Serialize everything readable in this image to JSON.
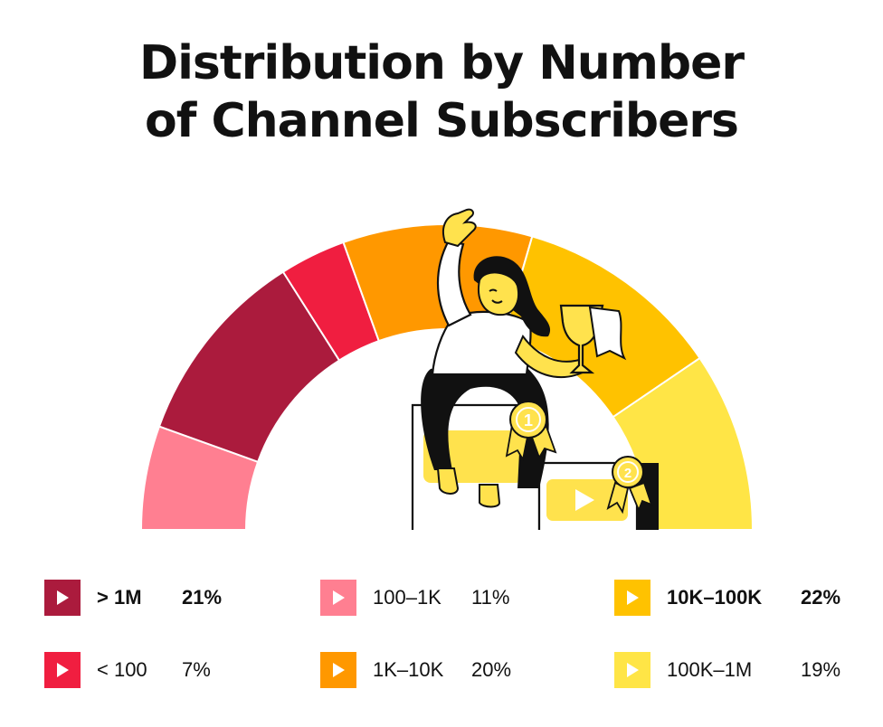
{
  "title": {
    "line1": "Distribution by Number",
    "line2": "of Channel Subscribers"
  },
  "chart_data": {
    "type": "pie",
    "variant": "semi-donut",
    "title": "Distribution by Number of Channel Subscribers",
    "unit": "%",
    "slices": [
      {
        "label": "100–1K",
        "value": 11,
        "display": "11%",
        "color": "#ff7f91"
      },
      {
        "label": "> 1M",
        "value": 21,
        "display": "21%",
        "color": "#ab1b3d"
      },
      {
        "label": "< 100",
        "value": 7,
        "display": "7%",
        "color": "#f01e40"
      },
      {
        "label": "1K–10K",
        "value": 20,
        "display": "20%",
        "color": "#ff9800"
      },
      {
        "label": "10K–100K",
        "value": 22,
        "display": "22%",
        "color": "#ffc200"
      },
      {
        "label": "100K–1M",
        "value": 19,
        "display": "19%",
        "color": "#ffe546"
      }
    ],
    "legend": [
      {
        "label": "> 1M",
        "value": "21%",
        "color": "#ab1b3d",
        "bold": true
      },
      {
        "label": "100–1K",
        "value": "11%",
        "color": "#ff7f91",
        "bold": false
      },
      {
        "label": "10K–100K",
        "value": "22%",
        "color": "#ffc200",
        "bold": true
      },
      {
        "label": "< 100",
        "value": "7%",
        "color": "#f01e40",
        "bold": false
      },
      {
        "label": "1K–10K",
        "value": "20%",
        "color": "#ff9800",
        "bold": false
      },
      {
        "label": "100K–1M",
        "value": "19%",
        "color": "#ffe546",
        "bold": false
      }
    ],
    "legend_placement": "bottom",
    "grid": false
  },
  "illustration": {
    "figure": "woman-with-trophy-icon",
    "medal_first_text": "1",
    "medal_second_text": "2",
    "medal_color": "#ffe24d",
    "ink_color": "#111111",
    "card_color": "#ffe24d"
  }
}
